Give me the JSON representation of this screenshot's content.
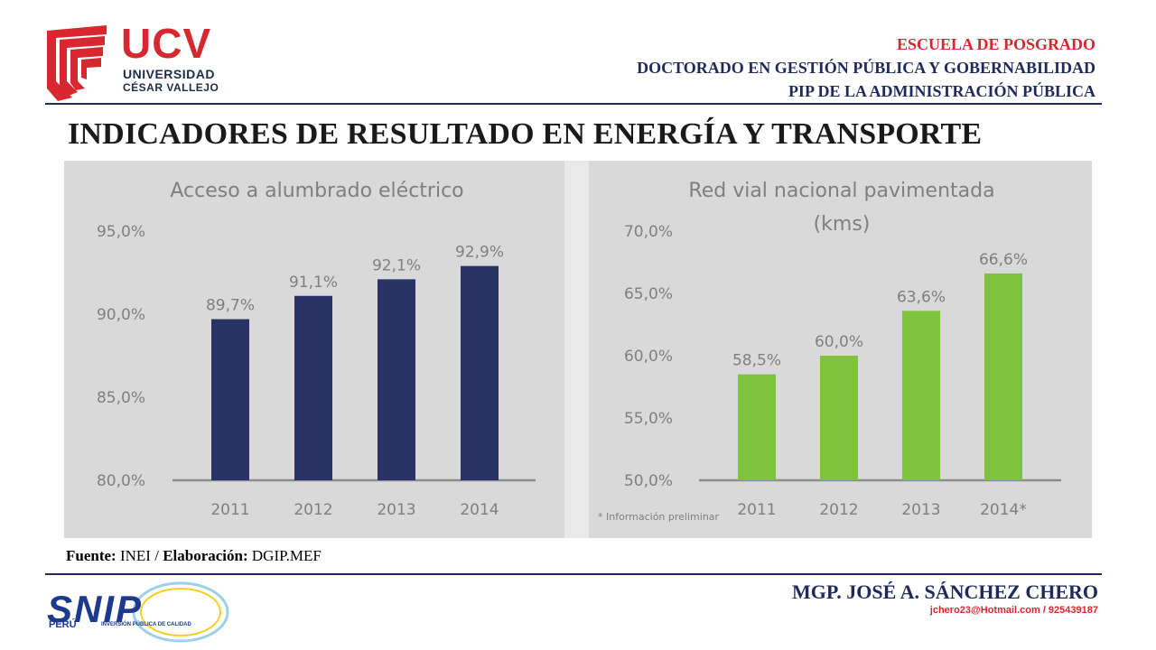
{
  "header": {
    "ucv_letters": "UCV",
    "ucv_line1": "UNIVERSIDAD",
    "ucv_line2": "CÉSAR VALLEJO",
    "school": "ESCUELA DE POSGRADO",
    "program": "DOCTORADO EN GESTIÓN PÚBLICA Y GOBERNABILIDAD",
    "subject": "PIP DE LA ADMINISTRACIÓN PÚBLICA",
    "colors": {
      "red": "#d7282f",
      "navy": "#1f2a5c"
    }
  },
  "title": "INDICADORES DE RESULTADO EN ENERGÍA Y TRANSPORTE",
  "chart_data": [
    {
      "type": "bar",
      "title": "Acceso a alumbrado eléctrico",
      "categories": [
        "2011",
        "2012",
        "2013",
        "2014"
      ],
      "values": [
        89.7,
        91.1,
        92.1,
        92.9
      ],
      "value_labels": [
        "89,7%",
        "91,1%",
        "92,1%",
        "92,9%"
      ],
      "yticks": [
        "95,0%",
        "90,0%",
        "85,0%",
        "80,0%"
      ],
      "ylim": [
        80,
        95
      ],
      "color": "#2b3366",
      "grid": false
    },
    {
      "type": "bar",
      "title": "Red vial nacional pavimentada",
      "subtitle": "(kms)",
      "categories": [
        "2011",
        "2012",
        "2013",
        "2014*"
      ],
      "values": [
        58.5,
        60.0,
        63.6,
        66.6
      ],
      "value_labels": [
        "58,5%",
        "60,0%",
        "63,6%",
        "66,6%"
      ],
      "yticks": [
        "70,0%",
        "65,0%",
        "60,0%",
        "55,0%",
        "50,0%"
      ],
      "ylim": [
        50,
        70
      ],
      "color": "#7fc23b",
      "note": "* Información preliminar",
      "grid": false
    }
  ],
  "source": {
    "source_label": "Fuente:",
    "source_value": "INEI",
    "separator": "/",
    "elab_label": "Elaboración:",
    "elab_value": "DGIP.MEF"
  },
  "footer": {
    "author": "MGP. JOSÉ A. SÁNCHEZ CHERO",
    "contact": "jchero23@Hotmail.com / 925439187",
    "snip_text": "SNIP",
    "snip_peru": "PERÚ",
    "snip_tag": "INVERSIÓN PÚBLICA DE CALIDAD"
  }
}
